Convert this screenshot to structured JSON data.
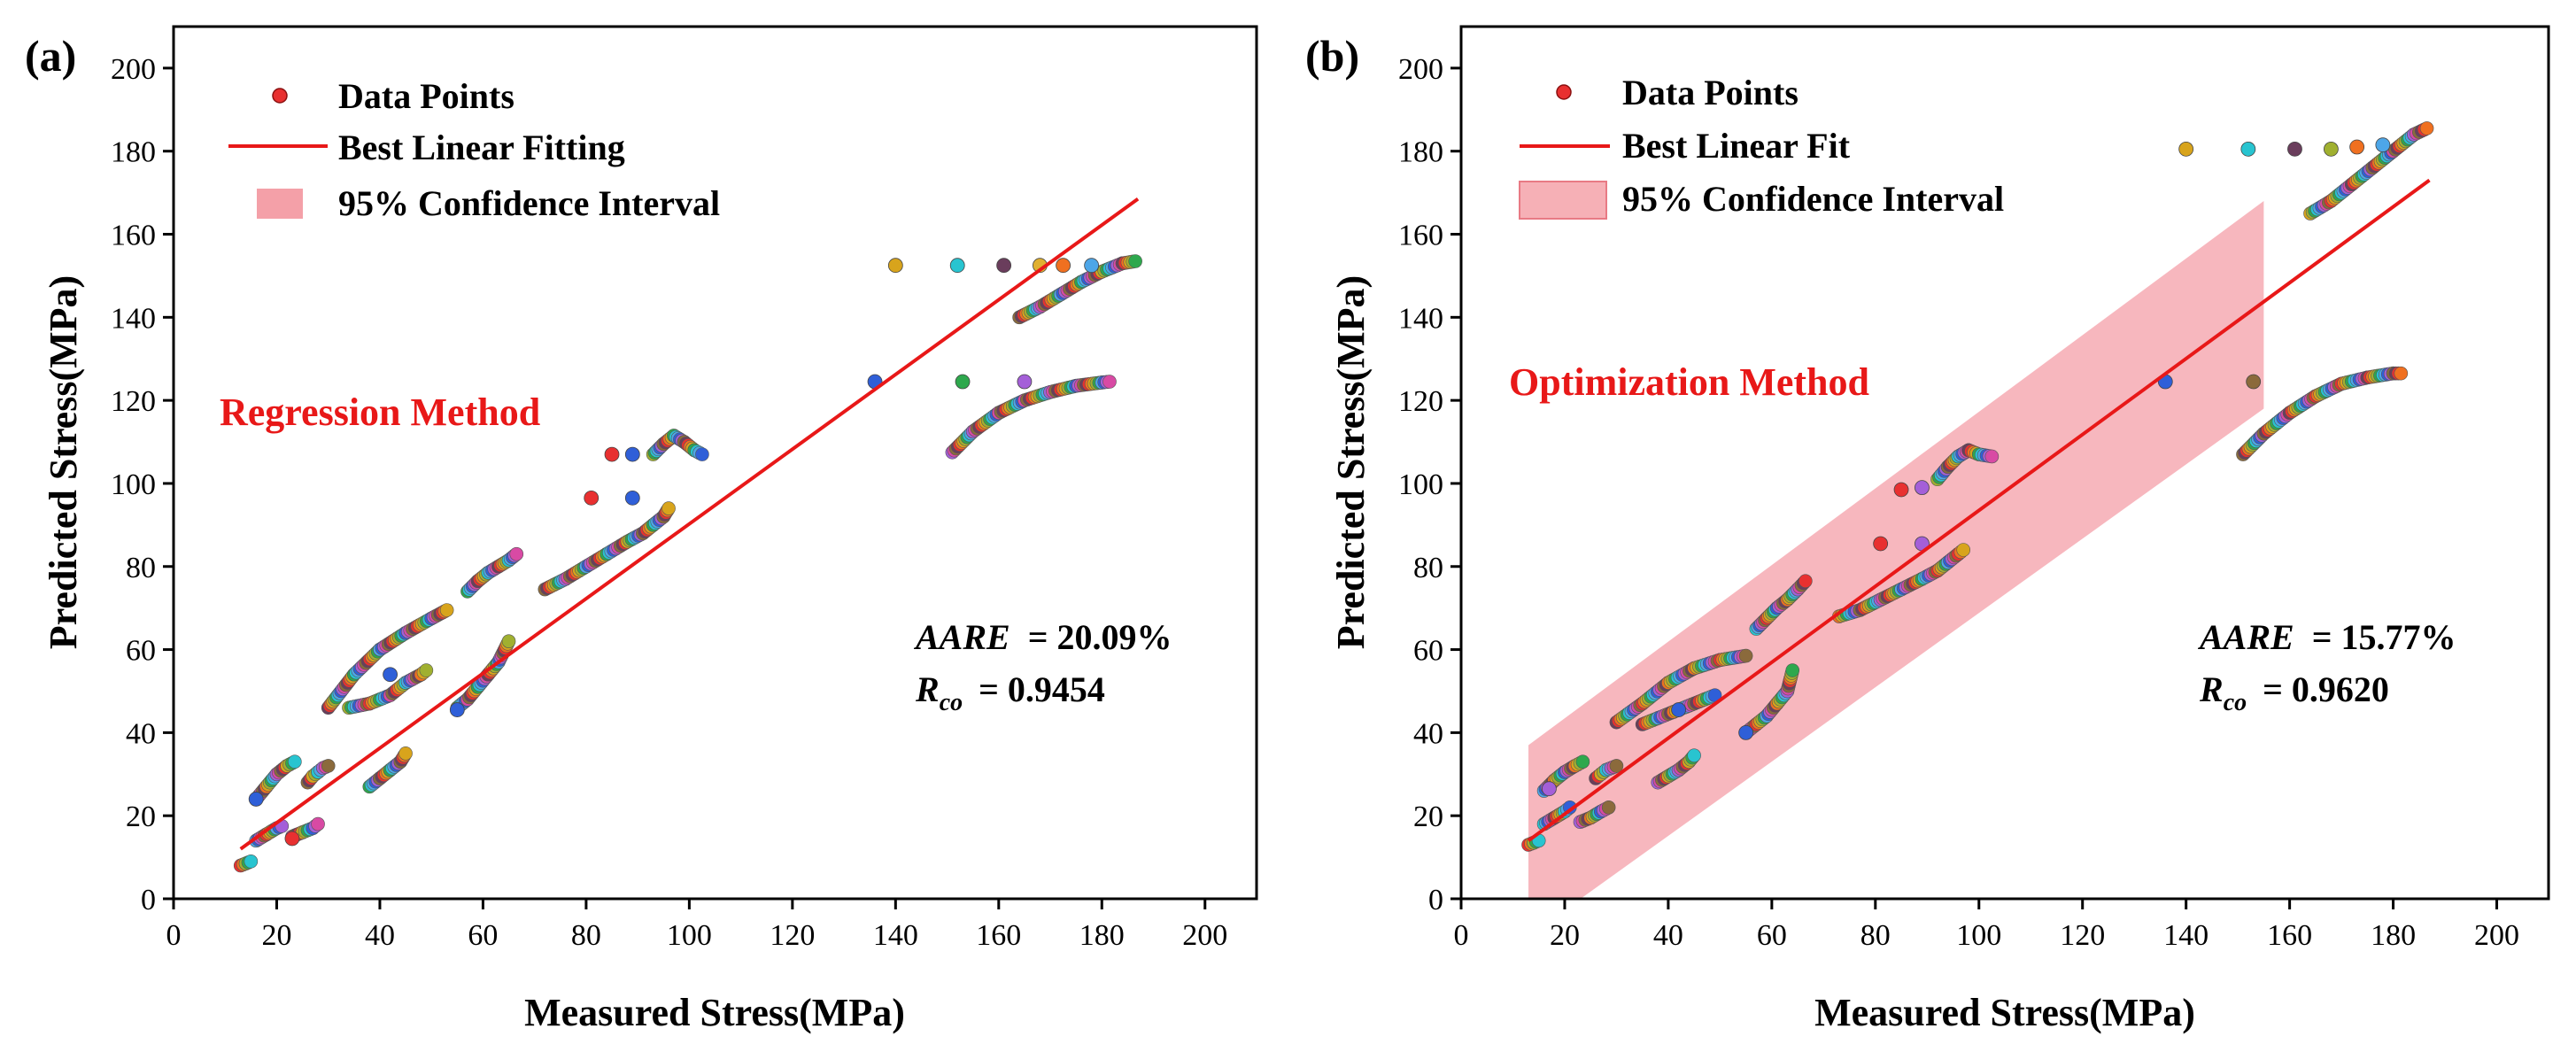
{
  "chart_data": [
    {
      "type": "scatter",
      "panel_label": "(a)",
      "xlabel": "Measured Stress(MPa)",
      "ylabel": "Predicted Stress(MPa)",
      "xlim": [
        0,
        210
      ],
      "ylim": [
        0,
        210
      ],
      "xticks": [
        0,
        20,
        40,
        60,
        80,
        100,
        120,
        140,
        160,
        180,
        200
      ],
      "yticks": [
        0,
        20,
        40,
        60,
        80,
        100,
        120,
        140,
        160,
        180,
        200
      ],
      "legend": {
        "position": "top-left",
        "data_points": "Data Points",
        "fit_line": "Best Linear Fitting",
        "confidence": "95% Confidence Interval"
      },
      "method_label": "Regression Method",
      "stats": {
        "aare_label": "AARE",
        "aare_value": "= 20.09%",
        "r_label": "R",
        "r_sub": "co",
        "r_value": "= 0.9454"
      },
      "fit_line": {
        "x": [
          13,
          187
        ],
        "y": [
          12,
          168.5
        ]
      },
      "confidence_band": null,
      "curves": [
        {
          "x": [
            13,
            14,
            15
          ],
          "y": [
            8,
            8.5,
            9
          ]
        },
        {
          "x": [
            16,
            18,
            20,
            22,
            23.5
          ],
          "y": [
            24,
            27,
            30,
            32,
            33
          ]
        },
        {
          "x": [
            16,
            18,
            20,
            21
          ],
          "y": [
            14,
            15.5,
            17,
            17.5
          ]
        },
        {
          "x": [
            23,
            25,
            27,
            28
          ],
          "y": [
            15,
            16,
            17,
            18
          ]
        },
        {
          "x": [
            26,
            27,
            28,
            29,
            30
          ],
          "y": [
            28,
            29.5,
            30.5,
            31.5,
            32
          ]
        },
        {
          "x": [
            30,
            35,
            40,
            45,
            50,
            53
          ],
          "y": [
            46,
            54,
            60,
            64,
            67.5,
            69.5
          ]
        },
        {
          "x": [
            34,
            38,
            42,
            45,
            48,
            49
          ],
          "y": [
            46,
            47,
            49,
            52,
            54,
            55
          ]
        },
        {
          "x": [
            38,
            40,
            42,
            44,
            45
          ],
          "y": [
            27,
            29,
            31,
            33,
            35
          ]
        },
        {
          "x": [
            55,
            57,
            59,
            61,
            63,
            65
          ],
          "y": [
            46,
            48,
            51,
            54,
            57,
            62
          ]
        },
        {
          "x": [
            57,
            59,
            61,
            63,
            65,
            66.5
          ],
          "y": [
            74,
            76.5,
            78.5,
            80,
            81.5,
            83
          ]
        },
        {
          "x": [
            72,
            76,
            80,
            84,
            88,
            91,
            93,
            95,
            96
          ],
          "y": [
            74.5,
            77,
            80,
            83,
            86,
            88,
            90,
            92,
            94
          ]
        },
        {
          "x": [
            93,
            95,
            97,
            99,
            101,
            102.5
          ],
          "y": [
            107,
            109.5,
            111.5,
            110,
            108,
            107
          ]
        },
        {
          "x": [
            151,
            155,
            160,
            165,
            170,
            175,
            180,
            181.5
          ],
          "y": [
            107.5,
            112.5,
            117,
            120,
            122,
            123.5,
            124.3,
            124.5
          ]
        },
        {
          "x": [
            164,
            168,
            172,
            176,
            180,
            184,
            186.5
          ],
          "y": [
            140,
            142.5,
            145.5,
            148.5,
            151,
            153,
            153.5
          ]
        }
      ],
      "points": [
        {
          "x": 136,
          "y": 124.5,
          "color": "#2f5fd8"
        },
        {
          "x": 153,
          "y": 124.5,
          "color": "#2ea84d"
        },
        {
          "x": 165,
          "y": 124.5,
          "color": "#a45fd8"
        },
        {
          "x": 140,
          "y": 152.5,
          "color": "#d8a41c"
        },
        {
          "x": 152,
          "y": 152.5,
          "color": "#28c4d0"
        },
        {
          "x": 161,
          "y": 152.5,
          "color": "#6a3d5c"
        },
        {
          "x": 168,
          "y": 152.5,
          "color": "#e0b030"
        },
        {
          "x": 172.5,
          "y": 152.5,
          "color": "#f07020"
        },
        {
          "x": 178,
          "y": 152.5,
          "color": "#4da6e8"
        },
        {
          "x": 85,
          "y": 107,
          "color": "#e83030"
        },
        {
          "x": 89,
          "y": 107,
          "color": "#2f5fd8"
        },
        {
          "x": 81,
          "y": 96.5,
          "color": "#e83030"
        },
        {
          "x": 89,
          "y": 96.5,
          "color": "#2f5fd8"
        },
        {
          "x": 42,
          "y": 54,
          "color": "#2f5fd8"
        },
        {
          "x": 55,
          "y": 45.5,
          "color": "#2f5fd8"
        },
        {
          "x": 23,
          "y": 14.5,
          "color": "#e83030"
        },
        {
          "x": 16,
          "y": 24,
          "color": "#2f5fd8"
        }
      ]
    },
    {
      "type": "scatter",
      "panel_label": "(b)",
      "xlabel": "Measured Stress(MPa)",
      "ylabel": "Predicted Stress(MPa)",
      "xlim": [
        0,
        210
      ],
      "ylim": [
        0,
        210
      ],
      "xticks": [
        0,
        20,
        40,
        60,
        80,
        100,
        120,
        140,
        160,
        180,
        200
      ],
      "yticks": [
        0,
        20,
        40,
        60,
        80,
        100,
        120,
        140,
        160,
        180,
        200
      ],
      "legend": {
        "position": "top-left",
        "data_points": "Data Points",
        "fit_line": "Best Linear Fit",
        "confidence": "95% Confidence Interval"
      },
      "method_label": "Optimization Method",
      "stats": {
        "aare_label": "AARE",
        "aare_value": "= 15.77%",
        "r_label": "R",
        "r_sub": "co",
        "r_value": "= 0.9620"
      },
      "fit_line": {
        "x": [
          13,
          187
        ],
        "y": [
          14,
          173
        ]
      },
      "confidence_band": {
        "x": [
          13,
          155
        ],
        "lower": [
          -9,
          118
        ],
        "upper": [
          37,
          168
        ]
      },
      "curves": [
        {
          "x": [
            13,
            14,
            15
          ],
          "y": [
            13,
            13.5,
            14
          ]
        },
        {
          "x": [
            16,
            18,
            20,
            22,
            23.5
          ],
          "y": [
            26,
            28.5,
            30.5,
            32,
            33
          ]
        },
        {
          "x": [
            16,
            18,
            20,
            21
          ],
          "y": [
            18,
            19.5,
            21,
            22
          ]
        },
        {
          "x": [
            23,
            25,
            27,
            28.5
          ],
          "y": [
            18.5,
            19.5,
            21,
            22
          ]
        },
        {
          "x": [
            26,
            27,
            28,
            29,
            30
          ],
          "y": [
            29,
            30,
            31,
            31.5,
            32
          ]
        },
        {
          "x": [
            30,
            35,
            40,
            45,
            50,
            55
          ],
          "y": [
            42.5,
            47,
            52,
            55.5,
            57.5,
            58.5
          ]
        },
        {
          "x": [
            35,
            38,
            41,
            44,
            47,
            49
          ],
          "y": [
            42,
            43.5,
            45,
            46.5,
            48,
            49
          ]
        },
        {
          "x": [
            38,
            40,
            42,
            44,
            45
          ],
          "y": [
            28,
            29.5,
            31,
            33,
            34.5
          ]
        },
        {
          "x": [
            55,
            57,
            59,
            61,
            63,
            64
          ],
          "y": [
            40,
            42,
            44,
            47,
            50,
            55
          ]
        },
        {
          "x": [
            57,
            59,
            61,
            63,
            65,
            66.5
          ],
          "y": [
            65,
            67.5,
            70,
            72,
            74.5,
            76.5
          ]
        },
        {
          "x": [
            73,
            77,
            81,
            85,
            89,
            92,
            94,
            96,
            97
          ],
          "y": [
            68,
            69.5,
            72,
            74.5,
            77,
            79,
            81,
            83,
            84
          ]
        },
        {
          "x": [
            92,
            94,
            96,
            98,
            100,
            102.5
          ],
          "y": [
            101,
            104,
            106.5,
            108,
            107,
            106.5
          ]
        },
        {
          "x": [
            151,
            155,
            160,
            165,
            170,
            175,
            180,
            181.5
          ],
          "y": [
            107,
            112,
            117,
            121,
            124,
            125.5,
            126.5,
            126.5
          ]
        },
        {
          "x": [
            164,
            168,
            172,
            176,
            180,
            184,
            186.5
          ],
          "y": [
            165,
            168,
            172,
            176,
            180,
            184,
            185.5
          ]
        }
      ],
      "points": [
        {
          "x": 136,
          "y": 124.5,
          "color": "#2f5fd8"
        },
        {
          "x": 153,
          "y": 124.5,
          "color": "#8b6a3c"
        },
        {
          "x": 140,
          "y": 180.5,
          "color": "#d8a41c"
        },
        {
          "x": 152,
          "y": 180.5,
          "color": "#28c4d0"
        },
        {
          "x": 161,
          "y": 180.5,
          "color": "#6a3d5c"
        },
        {
          "x": 168,
          "y": 180.5,
          "color": "#a0b030"
        },
        {
          "x": 173,
          "y": 181,
          "color": "#f07020"
        },
        {
          "x": 178,
          "y": 181.5,
          "color": "#4da6e8"
        },
        {
          "x": 85,
          "y": 98.5,
          "color": "#e83030"
        },
        {
          "x": 89,
          "y": 99,
          "color": "#a45fd8"
        },
        {
          "x": 81,
          "y": 85.5,
          "color": "#e83030"
        },
        {
          "x": 89,
          "y": 85.5,
          "color": "#a45fd8"
        },
        {
          "x": 42,
          "y": 45.5,
          "color": "#2f5fd8"
        },
        {
          "x": 55,
          "y": 40,
          "color": "#2f5fd8"
        },
        {
          "x": 17,
          "y": 26.5,
          "color": "#a45fd8"
        }
      ]
    }
  ]
}
